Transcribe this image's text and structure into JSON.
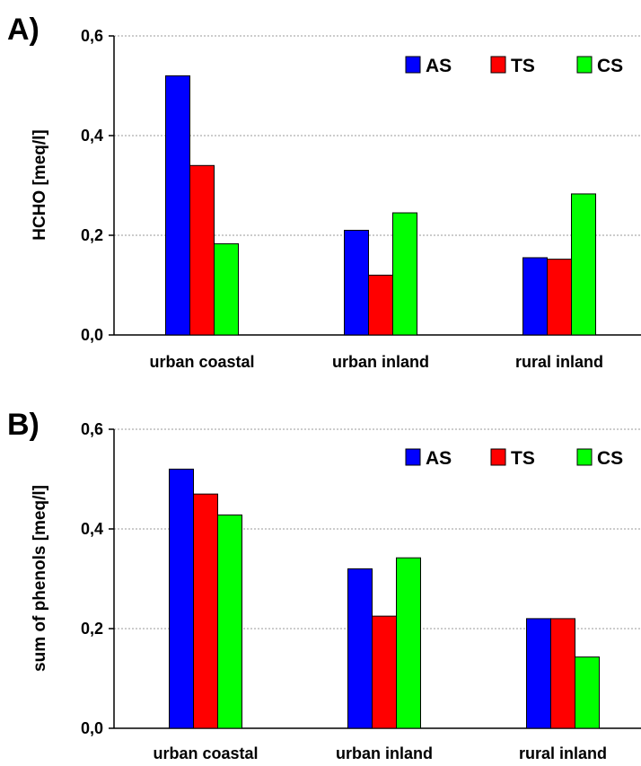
{
  "chart_data": [
    {
      "panel_label": "A)",
      "type": "bar",
      "categories": [
        "urban coastal",
        "urban inland",
        "rural inland"
      ],
      "series": [
        {
          "name": "AS",
          "values": [
            0.52,
            0.21,
            0.155
          ],
          "color": "#0000ff"
        },
        {
          "name": "TS",
          "values": [
            0.34,
            0.12,
            0.152
          ],
          "color": "#ff0000"
        },
        {
          "name": "CS",
          "values": [
            0.183,
            0.245,
            0.283
          ],
          "color": "#00ff00"
        }
      ],
      "ylabel": "HCHO [meq/l]",
      "ylim": [
        0,
        0.6
      ],
      "yticks": [
        "0,0",
        "0,2",
        "0,4",
        "0,6"
      ],
      "grid": "horizontal dotted",
      "legend": "top-right"
    },
    {
      "panel_label": "B)",
      "type": "bar",
      "categories": [
        "urban coastal",
        "urban inland",
        "rural inland"
      ],
      "series": [
        {
          "name": "AS",
          "values": [
            0.52,
            0.32,
            0.22
          ],
          "color": "#0000ff"
        },
        {
          "name": "TS",
          "values": [
            0.47,
            0.225,
            0.22
          ],
          "color": "#ff0000"
        },
        {
          "name": "CS",
          "values": [
            0.428,
            0.342,
            0.143
          ],
          "color": "#00ff00"
        }
      ],
      "ylabel": "sum of phenols [meq/l]",
      "ylim": [
        0,
        0.6
      ],
      "yticks": [
        "0,0",
        "0,2",
        "0,4",
        "0,6"
      ],
      "grid": "horizontal dotted",
      "legend": "top-right"
    }
  ]
}
